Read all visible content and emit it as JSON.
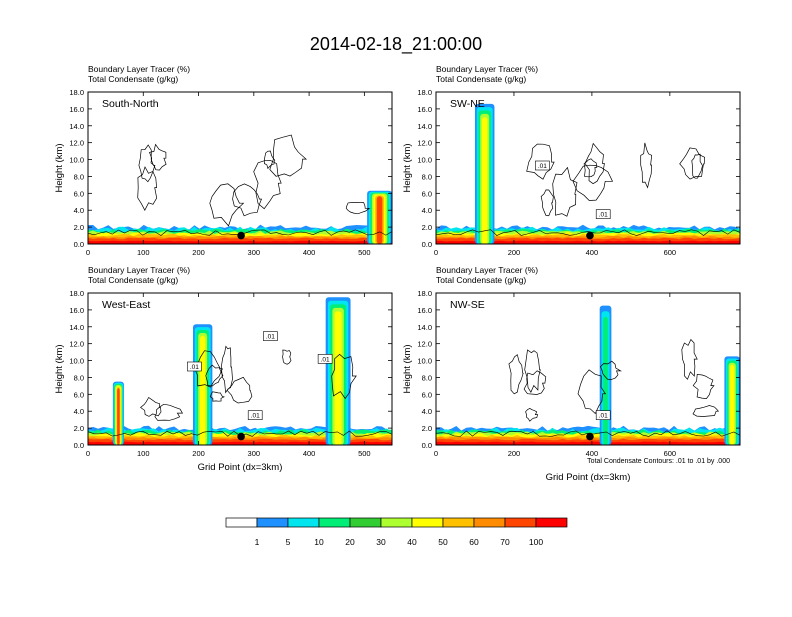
{
  "title": "2014-02-18_21:00:00",
  "chart_data": [
    {
      "type": "heatmap",
      "panel_label": "South-North",
      "header_line1": "Boundary Layer Tracer   (%)",
      "header_line2": "Total Condensate   (g/kg)",
      "ylabel": "Height (km)",
      "xlabel": "",
      "xlim": [
        0,
        550
      ],
      "ylim": [
        0,
        18
      ],
      "xticks": [
        "0",
        "100",
        "200",
        "300",
        "400",
        "500"
      ],
      "yticks": [
        "0.0",
        "2.0",
        "4.0",
        "6.0",
        "8.0",
        "10.0",
        "12.0",
        "14.0",
        "16.0",
        "18.0"
      ],
      "contour_labels": [],
      "tracer_plumes": [
        {
          "x": [
            505,
            550
          ],
          "ymax": 6.3,
          "peak": 100
        }
      ],
      "marker": {
        "x": 277,
        "y": 1.0
      }
    },
    {
      "type": "heatmap",
      "panel_label": "SW-NE",
      "header_line1": "Boundary Layer Tracer   (%)",
      "header_line2": "Total Condensate   (g/kg)",
      "ylabel": "Height (km)",
      "xlabel": "",
      "xlim": [
        0,
        780
      ],
      "ylim": [
        0,
        18
      ],
      "xticks": [
        "0",
        "200",
        "400",
        "600"
      ],
      "yticks": [
        "0.0",
        "2.0",
        "4.0",
        "6.0",
        "8.0",
        "10.0",
        "12.0",
        "14.0",
        "16.0",
        "18.0"
      ],
      "contour_labels": [
        ".01",
        ".01"
      ],
      "tracer_plumes": [
        {
          "x": [
            100,
            150
          ],
          "ymax": 16.6,
          "peak": 50
        }
      ],
      "marker": {
        "x": 395,
        "y": 1.0
      }
    },
    {
      "type": "heatmap",
      "panel_label": "West-East",
      "header_line1": "Boundary Layer Tracer   (%)",
      "header_line2": "Total Condensate   (g/kg)",
      "ylabel": "Height (km)",
      "xlabel": "Grid Point (dx=3km)",
      "xlim": [
        0,
        550
      ],
      "ylim": [
        0,
        18
      ],
      "xticks": [
        "0",
        "100",
        "200",
        "300",
        "400",
        "500"
      ],
      "yticks": [
        "0.0",
        "2.0",
        "4.0",
        "6.0",
        "8.0",
        "10.0",
        "12.0",
        "14.0",
        "16.0",
        "18.0"
      ],
      "contour_labels": [
        ".01",
        ".01",
        ".01",
        ".01"
      ],
      "tracer_plumes": [
        {
          "x": [
            190,
            225
          ],
          "ymax": 14.3,
          "peak": 50
        },
        {
          "x": [
            430,
            475
          ],
          "ymax": 17.5,
          "peak": 50
        },
        {
          "x": [
            45,
            65
          ],
          "ymax": 7.5,
          "peak": 100
        }
      ],
      "marker": {
        "x": 277,
        "y": 1.0
      }
    },
    {
      "type": "heatmap",
      "panel_label": "NW-SE",
      "header_line1": "Boundary Layer Tracer   (%)",
      "header_line2": "Total Condensate   (g/kg)",
      "ylabel": "Height (km)",
      "xlabel": "Grid Point (dx=3km)",
      "xlim": [
        0,
        780
      ],
      "ylim": [
        0,
        18
      ],
      "xticks": [
        "0",
        "200",
        "400",
        "600"
      ],
      "yticks": [
        "0.0",
        "2.0",
        "4.0",
        "6.0",
        "8.0",
        "10.0",
        "12.0",
        "14.0",
        "16.0",
        "18.0"
      ],
      "contour_labels": [
        ".01"
      ],
      "tracer_plumes": [
        {
          "x": [
            420,
            450
          ],
          "ymax": 16.5,
          "peak": 20
        },
        {
          "x": [
            740,
            780
          ],
          "ymax": 10.5,
          "peak": 50
        }
      ],
      "marker": {
        "x": 395,
        "y": 1.0
      }
    }
  ],
  "footnote": "Total Condensate Contours: .01 to .01 by .000",
  "colorbar": {
    "levels": [
      "1",
      "5",
      "10",
      "20",
      "30",
      "40",
      "50",
      "60",
      "70",
      "100"
    ],
    "colors": [
      "#ffffff",
      "#1e90ff",
      "#00e5ee",
      "#00ee76",
      "#32cd32",
      "#adff2f",
      "#ffff00",
      "#ffc000",
      "#ff8c00",
      "#ff4500",
      "#ff0000"
    ]
  }
}
